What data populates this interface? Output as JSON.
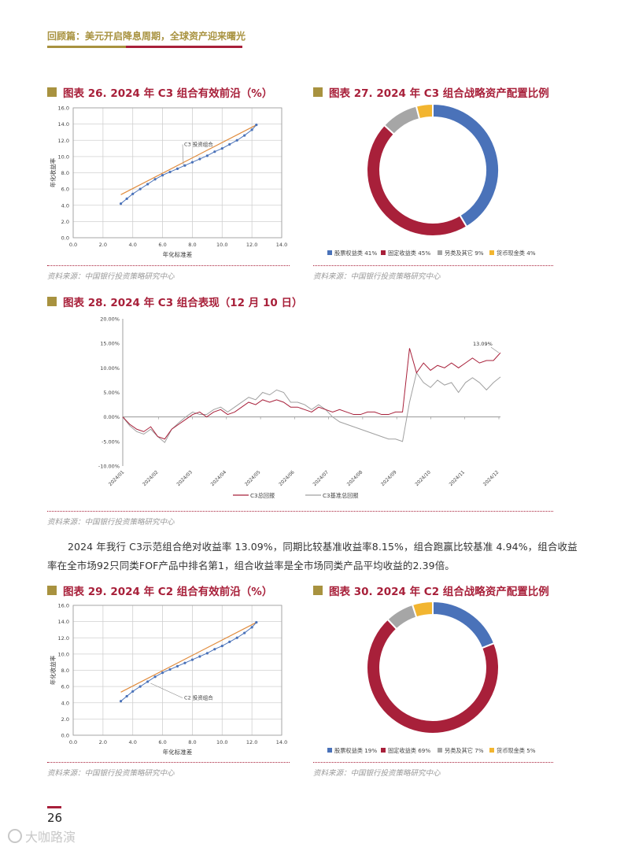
{
  "header": {
    "title": "回顾篇：美元开启降息周期，全球资产迎来曙光"
  },
  "chart26": {
    "heading": "图表 26. 2024 年 C3 组合有效前沿（%）",
    "chart_data": {
      "type": "line",
      "xlabel": "年化标准差",
      "ylabel": "年化收益率",
      "xlim": [
        0,
        14
      ],
      "ylim": [
        0,
        16
      ],
      "xticks": [
        "0.0",
        "2.0",
        "4.0",
        "6.0",
        "8.0",
        "10.0",
        "12.0",
        "14.0"
      ],
      "yticks": [
        "0.0",
        "2.0",
        "4.0",
        "6.0",
        "8.0",
        "10.0",
        "12.0",
        "14.0",
        "16.0"
      ],
      "annotation": "C3 投资组合",
      "frontier": {
        "x": [
          3.2,
          3.6,
          4.0,
          4.5,
          5.0,
          5.5,
          6.0,
          6.5,
          7.0,
          7.5,
          8.0,
          8.5,
          9.0,
          9.5,
          10.0,
          10.5,
          11.0,
          11.5,
          12.0,
          12.3
        ],
        "y": [
          4.2,
          4.8,
          5.4,
          6.0,
          6.6,
          7.2,
          7.7,
          8.1,
          8.5,
          8.9,
          9.3,
          9.7,
          10.1,
          10.6,
          11.0,
          11.5,
          12.0,
          12.6,
          13.3,
          13.9
        ]
      },
      "line": {
        "x": [
          3.2,
          12.3
        ],
        "y": [
          5.3,
          13.9
        ]
      }
    },
    "source": "资料来源：中国银行投资策略研究中心"
  },
  "chart27": {
    "heading": "图表 27. 2024 年 C3 组合战略资产配置比例",
    "chart_data": {
      "type": "pie",
      "slices": [
        {
          "name": "股票权益类",
          "value": 41,
          "color": "#4a72b9"
        },
        {
          "name": "固定收益类",
          "value": 45,
          "color": "#a8203a"
        },
        {
          "name": "另类及其它",
          "value": 9,
          "color": "#a6a6a6"
        },
        {
          "name": "货币现金类",
          "value": 4,
          "color": "#f2b530"
        }
      ]
    },
    "legend": [
      "股票权益类 41%",
      "固定收益类 45%",
      "另类及其它 9%",
      "货币现金类 4%"
    ],
    "source": "资料来源：中国银行投资策略研究中心"
  },
  "chart28": {
    "heading": "图表 28. 2024 年 C3 组合表现（12 月 10 日）",
    "chart_data": {
      "type": "line",
      "ylim": [
        -10,
        20
      ],
      "yticks": [
        "-10.00%",
        "-5.00%",
        "0.00%",
        "5.00%",
        "10.00%",
        "15.00%",
        "20.00%"
      ],
      "xticks": [
        "2024/01",
        "2024/02",
        "2024/03",
        "2024/04",
        "2024/05",
        "2024/06",
        "2024/07",
        "2024/08",
        "2024/09",
        "2024/10",
        "2024/11",
        "2024/12"
      ],
      "annotation": "13.09%",
      "series": [
        {
          "name": "C3总回报",
          "color": "#a8203a",
          "values": [
            0,
            -1.5,
            -2.5,
            -3,
            -2,
            -4,
            -4.5,
            -2.5,
            -1.5,
            -0.5,
            0.5,
            1,
            0,
            1,
            1.5,
            0.5,
            1,
            2,
            3,
            2.5,
            3.5,
            3,
            3.5,
            3,
            2,
            2,
            1.5,
            1,
            2,
            1.5,
            1,
            1.5,
            1,
            0.5,
            0.5,
            1,
            1,
            0.5,
            0.5,
            1,
            1,
            14,
            9,
            11,
            9.5,
            10.5,
            10,
            11,
            10,
            11,
            12,
            11,
            11.5,
            11.5,
            13.09
          ]
        },
        {
          "name": "C3基准总回报",
          "color": "#a0a0a0",
          "values": [
            0,
            -1.8,
            -3,
            -3.5,
            -2.5,
            -4,
            -5.2,
            -2.5,
            -1.2,
            0,
            1,
            0.5,
            0.5,
            1.5,
            2,
            1,
            2,
            3,
            4,
            3.5,
            5,
            4.5,
            5.5,
            5,
            3,
            3,
            2.5,
            1.5,
            2.5,
            1.5,
            0,
            -1,
            -1.5,
            -2,
            -2.5,
            -3,
            -3.5,
            -4,
            -4.5,
            -4.5,
            -5,
            3,
            9,
            7,
            6,
            7.5,
            6.5,
            7,
            5,
            7,
            8,
            7,
            5.5,
            7,
            8.15
          ]
        }
      ]
    },
    "legend": [
      "C3总回报",
      "C3基准总回报"
    ],
    "source": "资料来源：中国银行投资策略研究中心"
  },
  "paragraph": "2024 年我行 C3示范组合绝对收益率 13.09%，同期比较基准收益率8.15%，组合跑赢比较基准 4.94%，组合收益率在全市场92只同类FOF产品中排名第1，组合收益率是全市场同类产品平均收益的2.39倍。",
  "chart29": {
    "heading": "图表 29. 2024 年 C2 组合有效前沿（%）",
    "chart_data": {
      "type": "line",
      "xlabel": "年化标准差",
      "ylabel": "年化收益率",
      "xlim": [
        0,
        14
      ],
      "ylim": [
        0,
        16
      ],
      "xticks": [
        "0.0",
        "2.0",
        "4.0",
        "6.0",
        "8.0",
        "10.0",
        "12.0",
        "14.0"
      ],
      "yticks": [
        "0.0",
        "2.0",
        "4.0",
        "6.0",
        "8.0",
        "10.0",
        "12.0",
        "14.0",
        "16.0"
      ],
      "annotation": "C2 投资组合",
      "frontier": {
        "x": [
          3.2,
          3.6,
          4.0,
          4.5,
          5.0,
          5.5,
          6.0,
          6.5,
          7.0,
          7.5,
          8.0,
          8.5,
          9.0,
          9.5,
          10.0,
          10.5,
          11.0,
          11.5,
          12.0,
          12.3
        ],
        "y": [
          4.2,
          4.8,
          5.4,
          6.0,
          6.6,
          7.2,
          7.7,
          8.1,
          8.5,
          8.9,
          9.3,
          9.7,
          10.1,
          10.6,
          11.0,
          11.5,
          12.0,
          12.6,
          13.3,
          13.9
        ]
      },
      "line": {
        "x": [
          3.2,
          12.3
        ],
        "y": [
          5.3,
          13.9
        ]
      }
    },
    "source": "资料来源：中国银行投资策略研究中心"
  },
  "chart30": {
    "heading": "图表 30. 2024 年 C2 组合战略资产配置比例",
    "chart_data": {
      "type": "pie",
      "slices": [
        {
          "name": "股票权益类",
          "value": 19,
          "color": "#4a72b9"
        },
        {
          "name": "固定收益类",
          "value": 69,
          "color": "#a8203a"
        },
        {
          "name": "另类及其它",
          "value": 7,
          "color": "#a6a6a6"
        },
        {
          "name": "货币现金类",
          "value": 5,
          "color": "#f2b530"
        }
      ]
    },
    "legend": [
      "股票权益类 19%",
      "固定收益类 69%",
      "另类及其它 7%",
      "货币现金类 5%"
    ],
    "source": "资料来源：中国银行投资策略研究中心"
  },
  "footer": {
    "page": "26",
    "watermark": "大咖路演"
  }
}
